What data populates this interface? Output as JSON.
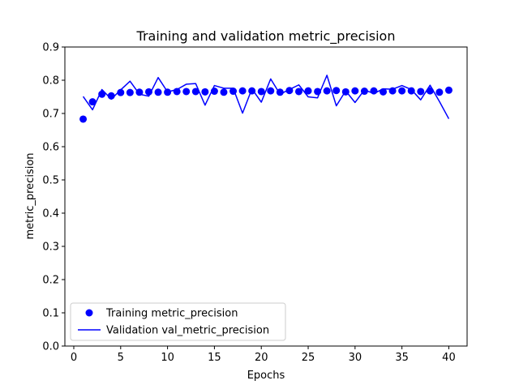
{
  "chart_data": {
    "type": "line",
    "title": "Training and validation metric_precision",
    "xlabel": "Epochs",
    "ylabel": "metric_precision",
    "xlim": [
      -0.95,
      41.95
    ],
    "ylim": [
      0.0,
      0.9
    ],
    "xticks": [
      0,
      5,
      10,
      15,
      20,
      25,
      30,
      35,
      40
    ],
    "yticks": [
      0.0,
      0.1,
      0.2,
      0.3,
      0.4,
      0.5,
      0.6,
      0.7,
      0.8,
      0.9
    ],
    "xtick_labels": [
      "0",
      "5",
      "10",
      "15",
      "20",
      "25",
      "30",
      "35",
      "40"
    ],
    "ytick_labels": [
      "0.0",
      "0.1",
      "0.2",
      "0.3",
      "0.4",
      "0.5",
      "0.6",
      "0.7",
      "0.8",
      "0.9"
    ],
    "grid": false,
    "legend": {
      "placement": "lower-left",
      "entries": [
        "Training metric_precision",
        "Validation val_metric_precision"
      ]
    },
    "x": [
      1,
      2,
      3,
      4,
      5,
      6,
      7,
      8,
      9,
      10,
      11,
      12,
      13,
      14,
      15,
      16,
      17,
      18,
      19,
      20,
      21,
      22,
      23,
      24,
      25,
      26,
      27,
      28,
      29,
      30,
      31,
      32,
      33,
      34,
      35,
      36,
      37,
      38,
      39,
      40
    ],
    "series": [
      {
        "name": "Training metric_precision",
        "style": "points",
        "color": "#0000ff",
        "values": [
          0.683,
          0.735,
          0.758,
          0.753,
          0.763,
          0.763,
          0.764,
          0.765,
          0.764,
          0.764,
          0.766,
          0.766,
          0.766,
          0.765,
          0.767,
          0.764,
          0.767,
          0.768,
          0.768,
          0.766,
          0.768,
          0.764,
          0.769,
          0.766,
          0.768,
          0.766,
          0.768,
          0.769,
          0.765,
          0.768,
          0.767,
          0.768,
          0.765,
          0.768,
          0.768,
          0.768,
          0.766,
          0.768,
          0.764,
          0.77
        ]
      },
      {
        "name": "Validation val_metric_precision",
        "style": "line",
        "color": "#0000ff",
        "values": [
          0.751,
          0.711,
          0.772,
          0.743,
          0.771,
          0.797,
          0.758,
          0.752,
          0.808,
          0.765,
          0.772,
          0.788,
          0.79,
          0.725,
          0.784,
          0.776,
          0.776,
          0.701,
          0.774,
          0.734,
          0.804,
          0.758,
          0.772,
          0.786,
          0.75,
          0.747,
          0.815,
          0.723,
          0.768,
          0.733,
          0.771,
          0.76,
          0.774,
          0.773,
          0.784,
          0.772,
          0.741,
          0.785,
          0.736,
          0.684
        ]
      }
    ]
  }
}
